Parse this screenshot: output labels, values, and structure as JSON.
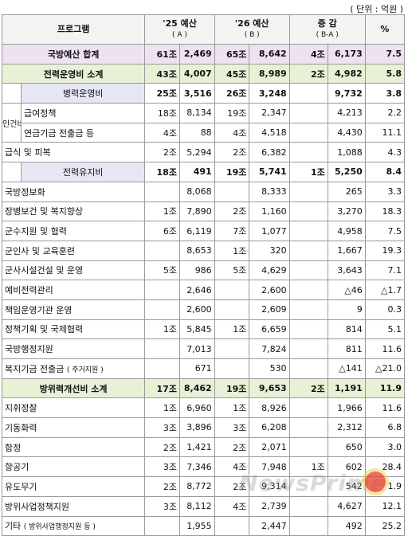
{
  "unit_note": "( 단위 : 억원 )",
  "headers": {
    "program": "프로그램",
    "col_a_title": "'25 예산",
    "col_a_sub": "( A )",
    "col_b_title": "'26 예산",
    "col_b_sub": "( B )",
    "col_diff_title": "증 감",
    "col_diff_sub": "( B-A )",
    "col_pct": "%"
  },
  "rows": [
    {
      "label": "국방예산 합계",
      "a1": "61조",
      "a2": "2,469",
      "b1": "65조",
      "b2": "8,642",
      "d1": "4조",
      "d2": "6,173",
      "pct": "7.5"
    },
    {
      "label": "전력운영비 소계",
      "a1": "43조",
      "a2": "4,007",
      "b1": "45조",
      "b2": "8,989",
      "d1": "2조",
      "d2": "4,982",
      "pct": "5.8"
    },
    {
      "label": "병력운영비",
      "a1": "25조",
      "a2": "3,516",
      "b1": "26조",
      "b2": "3,248",
      "d1": "",
      "d2": "9,732",
      "pct": "3.8"
    },
    {
      "group": "인건비",
      "label": "급여정책",
      "a1": "18조",
      "a2": "8,134",
      "b1": "19조",
      "b2": "2,347",
      "d1": "",
      "d2": "4,213",
      "pct": "2.2"
    },
    {
      "label": "연금기금 전출금 등",
      "a1": "4조",
      "a2": "88",
      "b1": "4조",
      "b2": "4,518",
      "d1": "",
      "d2": "4,430",
      "pct": "11.1"
    },
    {
      "label": "급식 및 피복",
      "a1": "2조",
      "a2": "5,294",
      "b1": "2조",
      "b2": "6,382",
      "d1": "",
      "d2": "1,088",
      "pct": "4.3"
    },
    {
      "label": "전력유지비",
      "a1": "18조",
      "a2": "491",
      "b1": "19조",
      "b2": "5,741",
      "d1": "1조",
      "d2": "5,250",
      "pct": "8.4"
    },
    {
      "label": "국방정보화",
      "a1": "",
      "a2": "8,068",
      "b1": "",
      "b2": "8,333",
      "d1": "",
      "d2": "265",
      "pct": "3.3"
    },
    {
      "label": "장병보건 및 복지향상",
      "a1": "1조",
      "a2": "7,890",
      "b1": "2조",
      "b2": "1,160",
      "d1": "",
      "d2": "3,270",
      "pct": "18.3"
    },
    {
      "label": "군수지원 및 협력",
      "a1": "6조",
      "a2": "6,119",
      "b1": "7조",
      "b2": "1,077",
      "d1": "",
      "d2": "4,958",
      "pct": "7.5"
    },
    {
      "label": "군인사 및 교육훈련",
      "a1": "",
      "a2": "8,653",
      "b1": "1조",
      "b2": "320",
      "d1": "",
      "d2": "1,667",
      "pct": "19.3"
    },
    {
      "label": "군사시설건설 및 운영",
      "a1": "5조",
      "a2": "986",
      "b1": "5조",
      "b2": "4,629",
      "d1": "",
      "d2": "3,643",
      "pct": "7.1"
    },
    {
      "label": "예비전력관리",
      "a1": "",
      "a2": "2,646",
      "b1": "",
      "b2": "2,600",
      "d1": "",
      "d2": "△46",
      "pct": "△1.7"
    },
    {
      "label": "책임운영기관 운영",
      "a1": "",
      "a2": "2,600",
      "b1": "",
      "b2": "2,609",
      "d1": "",
      "d2": "9",
      "pct": "0.3"
    },
    {
      "label": "정책기획 및 국제협력",
      "a1": "1조",
      "a2": "5,845",
      "b1": "1조",
      "b2": "6,659",
      "d1": "",
      "d2": "814",
      "pct": "5.1"
    },
    {
      "label": "국방행정지원",
      "a1": "",
      "a2": "7,013",
      "b1": "",
      "b2": "7,824",
      "d1": "",
      "d2": "811",
      "pct": "11.6"
    },
    {
      "label": "복지기금 전출금",
      "label_note": "( 주거지원 )",
      "a1": "",
      "a2": "671",
      "b1": "",
      "b2": "530",
      "d1": "",
      "d2": "△141",
      "pct": "△21.0"
    },
    {
      "label": "방위력개선비 소계",
      "a1": "17조",
      "a2": "8,462",
      "b1": "19조",
      "b2": "9,653",
      "d1": "2조",
      "d2": "1,191",
      "pct": "11.9"
    },
    {
      "label": "지휘정찰",
      "a1": "1조",
      "a2": "6,960",
      "b1": "1조",
      "b2": "8,926",
      "d1": "",
      "d2": "1,966",
      "pct": "11.6"
    },
    {
      "label": "기동화력",
      "a1": "3조",
      "a2": "3,896",
      "b1": "3조",
      "b2": "6,208",
      "d1": "",
      "d2": "2,312",
      "pct": "6.8"
    },
    {
      "label": "함정",
      "a1": "2조",
      "a2": "1,421",
      "b1": "2조",
      "b2": "2,071",
      "d1": "",
      "d2": "650",
      "pct": "3.0"
    },
    {
      "label": "항공기",
      "a1": "3조",
      "a2": "7,346",
      "b1": "4조",
      "b2": "7,948",
      "d1": "1조",
      "d2": "602",
      "pct": "28.4"
    },
    {
      "label": "유도무기",
      "a1": "2조",
      "a2": "8,772",
      "b1": "2조",
      "b2": "9,314",
      "d1": "",
      "d2": "542",
      "pct": "1.9"
    },
    {
      "label": "방위사업정책지원",
      "a1": "3조",
      "a2": "8,112",
      "b1": "4조",
      "b2": "2,739",
      "d1": "",
      "d2": "4,627",
      "pct": "12.1"
    },
    {
      "label": "기타",
      "label_note": "( 방위사업행정지원 등 )",
      "a1": "",
      "a2": "1,955",
      "b1": "",
      "b2": "2,447",
      "d1": "",
      "d2": "492",
      "pct": "25.2"
    }
  ],
  "watermark": "NewsPrime"
}
